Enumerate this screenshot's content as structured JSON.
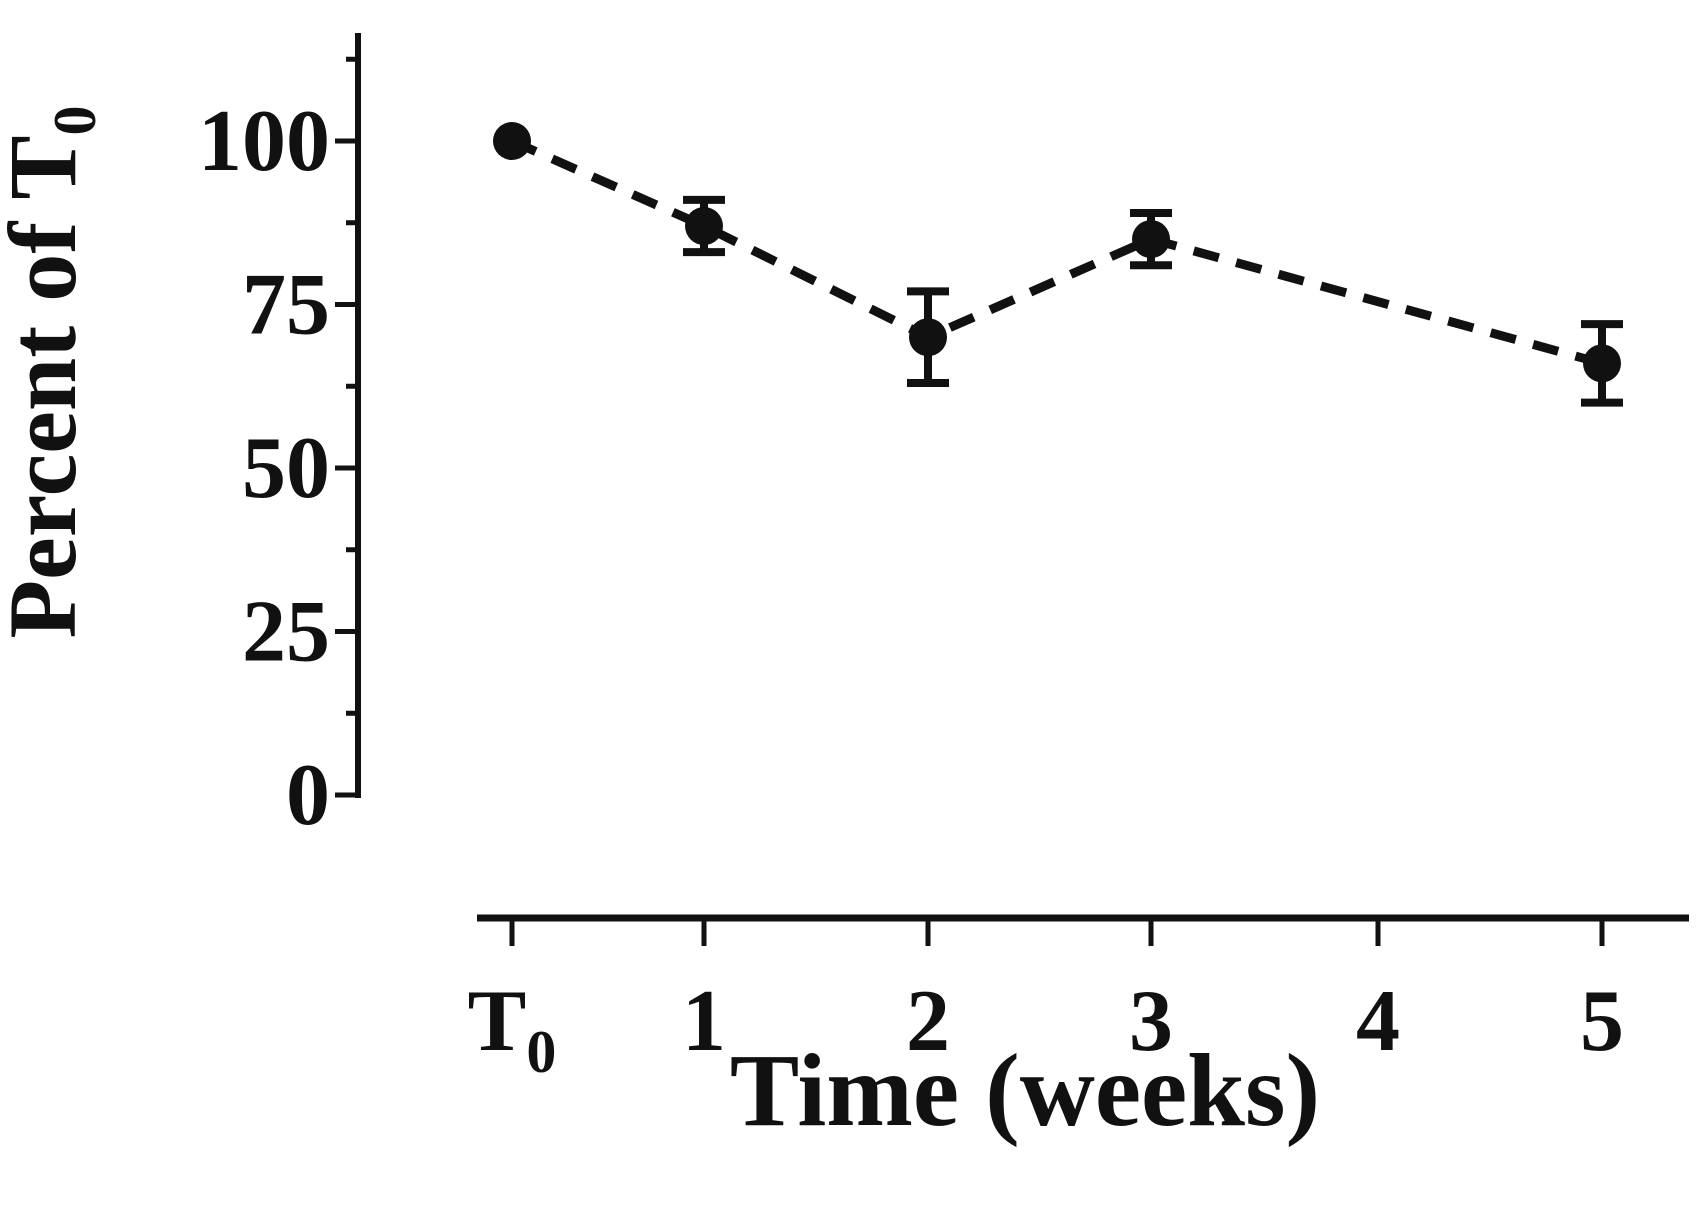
{
  "chart_data": {
    "type": "line",
    "title": "",
    "xlabel": "Time (weeks)",
    "ylabel_base": "Percent of T",
    "ylabel_sub": "0",
    "x_tick_labels": [
      {
        "base": "T",
        "sub": "0"
      },
      {
        "base": "1",
        "sub": ""
      },
      {
        "base": "2",
        "sub": ""
      },
      {
        "base": "3",
        "sub": ""
      },
      {
        "base": "4",
        "sub": ""
      },
      {
        "base": "5",
        "sub": ""
      }
    ],
    "y_tick_values": [
      0,
      25,
      50,
      75,
      100
    ],
    "y_minor_tick_values": [
      12.5,
      37.5,
      62.5,
      87.5,
      112.5
    ],
    "ylim": [
      0,
      113
    ],
    "xlim_weeks": [
      0,
      5
    ],
    "grid": false,
    "legend": false,
    "series": [
      {
        "name": "percent-of-t0",
        "x_weeks": [
          0,
          1,
          2,
          3,
          5
        ],
        "y_percent": [
          100,
          87,
          70,
          85,
          66
        ],
        "y_error": [
          0,
          4,
          7,
          4,
          6
        ],
        "marker": "filled-circle",
        "line_style": "dashed",
        "color": "#111111"
      }
    ],
    "colors": {
      "ink": "#111111",
      "background": "#ffffff"
    }
  }
}
